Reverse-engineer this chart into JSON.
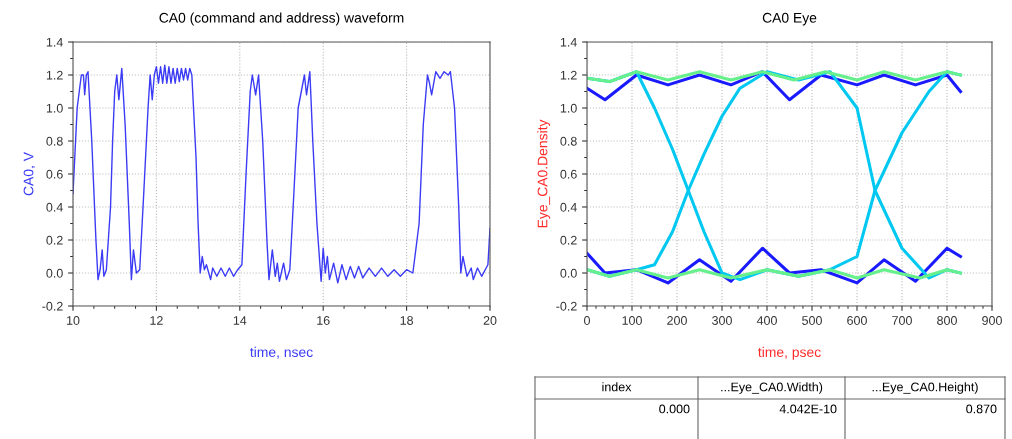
{
  "chart_data": [
    {
      "type": "line",
      "title": "CA0 (command and address) waveform",
      "xlabel": "time, nsec",
      "ylabel": "CA0, V",
      "xlim": [
        10,
        20
      ],
      "xticks": [
        10,
        12,
        14,
        16,
        18,
        20
      ],
      "ylim": [
        -0.2,
        1.4
      ],
      "yticks": [
        {
          "value": -0.2,
          "label": "-0.2"
        },
        {
          "value": 0.0,
          "label": "0.0"
        },
        {
          "value": 0.2,
          "label": "0.2"
        },
        {
          "value": 0.4,
          "label": "0.4"
        },
        {
          "value": 0.6,
          "label": "0.6"
        },
        {
          "value": 0.8,
          "label": "0.8"
        },
        {
          "value": 1.0,
          "label": "1.0"
        },
        {
          "value": 1.2,
          "label": "1.2"
        },
        {
          "value": 1.4,
          "label": "1.4"
        }
      ],
      "grid": true,
      "legend": false,
      "series": [
        {
          "color": "#3b3bf5",
          "x": [
            10.0,
            10.1,
            10.15,
            10.2,
            10.25,
            10.28,
            10.32,
            10.36,
            10.45,
            10.55,
            10.6,
            10.65,
            10.7,
            10.74,
            10.8,
            10.9,
            10.95,
            11.0,
            11.05,
            11.1,
            11.17,
            11.25,
            11.35,
            11.4,
            11.45,
            11.52,
            11.6,
            11.7,
            11.8,
            11.85,
            11.9,
            11.95,
            12.0,
            12.05,
            12.1,
            12.15,
            12.2,
            12.25,
            12.3,
            12.35,
            12.4,
            12.45,
            12.5,
            12.55,
            12.6,
            12.65,
            12.7,
            12.75,
            12.8,
            12.85,
            12.95,
            13.0,
            13.05,
            13.1,
            13.15,
            13.2,
            13.3,
            13.35,
            13.45,
            13.55,
            13.65,
            13.75,
            13.85,
            13.95,
            14.05,
            14.15,
            14.25,
            14.3,
            14.38,
            14.45,
            14.55,
            14.65,
            14.7,
            14.78,
            14.85,
            14.9,
            14.95,
            15.05,
            15.12,
            15.2,
            15.3,
            15.4,
            15.55,
            15.6,
            15.68,
            15.75,
            15.85,
            15.95,
            16.0,
            16.05,
            16.1,
            16.15,
            16.25,
            16.35,
            16.45,
            16.55,
            16.65,
            16.75,
            16.85,
            16.95,
            17.1,
            17.25,
            17.4,
            17.55,
            17.7,
            17.85,
            18.0,
            18.15,
            18.3,
            18.4,
            18.5,
            18.55,
            18.6,
            18.7,
            18.8,
            18.9,
            19.0,
            19.05,
            19.15,
            19.25,
            19.3,
            19.35,
            19.45,
            19.55,
            19.6,
            19.7,
            19.8,
            19.95,
            20.0
          ],
          "values": [
            0.48,
            1.0,
            1.1,
            1.2,
            1.2,
            1.08,
            1.2,
            1.22,
            0.8,
            0.2,
            -0.04,
            0.02,
            0.14,
            -0.02,
            0.02,
            0.4,
            0.8,
            1.1,
            1.2,
            1.05,
            1.24,
            0.9,
            0.3,
            -0.04,
            0.14,
            0.0,
            0.02,
            0.5,
            1.0,
            1.2,
            1.05,
            1.2,
            1.25,
            1.15,
            1.25,
            1.15,
            1.26,
            1.15,
            1.25,
            1.15,
            1.24,
            1.15,
            1.24,
            1.16,
            1.24,
            1.17,
            1.24,
            1.17,
            1.24,
            1.2,
            0.7,
            0.3,
            0.0,
            0.1,
            0.02,
            0.05,
            -0.04,
            0.03,
            -0.02,
            0.03,
            -0.02,
            0.03,
            -0.02,
            0.02,
            0.05,
            0.6,
            1.1,
            1.2,
            1.08,
            1.2,
            0.8,
            0.2,
            -0.04,
            0.14,
            -0.02,
            0.06,
            -0.05,
            0.06,
            -0.04,
            0.02,
            0.5,
            1.0,
            1.2,
            1.08,
            1.22,
            0.8,
            0.3,
            -0.05,
            0.15,
            0.0,
            0.1,
            -0.04,
            0.06,
            -0.06,
            0.05,
            -0.04,
            0.04,
            -0.03,
            0.04,
            -0.03,
            0.03,
            -0.02,
            0.03,
            -0.02,
            0.02,
            -0.02,
            0.02,
            0.0,
            0.3,
            0.9,
            1.2,
            1.15,
            1.08,
            1.22,
            1.18,
            1.22,
            1.2,
            1.22,
            1.0,
            0.4,
            0.0,
            0.1,
            -0.02,
            0.03,
            -0.04,
            0.03,
            -0.02,
            0.05,
            0.27
          ]
        }
      ]
    },
    {
      "type": "line",
      "title": "CA0 Eye",
      "xlabel": "time, psec",
      "ylabel": "Eye_CA0.Density",
      "xlim": [
        0,
        900
      ],
      "xticks": [
        0,
        100,
        200,
        300,
        400,
        500,
        600,
        700,
        800,
        900
      ],
      "ylim": [
        -0.2,
        1.4
      ],
      "yticks": [
        {
          "value": -0.2,
          "label": "-0.2"
        },
        {
          "value": 0.0,
          "label": "0.0"
        },
        {
          "value": 0.2,
          "label": "0.2"
        },
        {
          "value": 0.4,
          "label": "0.4"
        },
        {
          "value": 0.6,
          "label": "0.6"
        },
        {
          "value": 0.8,
          "label": "0.8"
        },
        {
          "value": 1.0,
          "label": "1.0"
        },
        {
          "value": 1.2,
          "label": "1.2"
        },
        {
          "value": 1.4,
          "label": "1.4"
        }
      ],
      "grid": true,
      "legend": false,
      "annotations": [
        "index",
        "...Eye_CA0.Width)",
        "...Eye_CA0.Height)",
        "0.000",
        "4.042E-10",
        "0.870"
      ],
      "series": [
        {
          "color": "#1a1aff",
          "x": [
            0,
            40,
            110,
            180,
            250,
            320,
            390,
            450,
            520,
            600,
            660,
            730,
            800,
            830
          ],
          "values": [
            1.12,
            1.05,
            1.2,
            1.14,
            1.2,
            1.14,
            1.22,
            1.05,
            1.2,
            1.14,
            1.2,
            1.14,
            1.2,
            1.1
          ]
        },
        {
          "color": "#1a1aff",
          "x": [
            0,
            40,
            110,
            180,
            250,
            320,
            390,
            450,
            520,
            600,
            660,
            730,
            800,
            830
          ],
          "values": [
            0.12,
            0.0,
            0.02,
            -0.06,
            0.08,
            -0.05,
            0.15,
            0.0,
            0.02,
            -0.06,
            0.08,
            -0.05,
            0.15,
            0.1
          ]
        },
        {
          "color": "#00c8f0",
          "x": [
            0,
            50,
            110,
            150,
            190,
            225,
            260,
            300,
            340,
            400,
            470,
            540,
            600,
            640,
            700,
            760,
            800,
            830
          ],
          "values": [
            1.18,
            1.16,
            1.22,
            1.0,
            0.75,
            0.5,
            0.25,
            0.0,
            -0.04,
            0.02,
            -0.02,
            0.02,
            0.1,
            0.5,
            0.85,
            1.1,
            1.22,
            1.2
          ]
        },
        {
          "color": "#00c8f0",
          "x": [
            0,
            50,
            110,
            150,
            190,
            225,
            260,
            300,
            340,
            400,
            470,
            540,
            600,
            640,
            700,
            760,
            800,
            830
          ],
          "values": [
            0.02,
            -0.02,
            0.02,
            0.05,
            0.25,
            0.5,
            0.72,
            0.95,
            1.12,
            1.22,
            1.17,
            1.22,
            1.0,
            0.5,
            0.15,
            -0.03,
            0.02,
            0.0
          ]
        },
        {
          "color": "#66f08c",
          "x": [
            0,
            50,
            110,
            180,
            250,
            320,
            390,
            460,
            530,
            600,
            660,
            730,
            800,
            830
          ],
          "values": [
            1.18,
            1.16,
            1.22,
            1.17,
            1.22,
            1.17,
            1.22,
            1.17,
            1.22,
            1.17,
            1.22,
            1.17,
            1.22,
            1.2
          ]
        },
        {
          "color": "#66f08c",
          "x": [
            0,
            50,
            110,
            180,
            250,
            320,
            400,
            470,
            540,
            600,
            660,
            740,
            800,
            830
          ],
          "values": [
            0.02,
            -0.02,
            0.02,
            -0.03,
            0.02,
            -0.03,
            0.02,
            -0.02,
            0.02,
            -0.03,
            0.02,
            -0.03,
            0.02,
            0.0
          ]
        }
      ]
    }
  ]
}
